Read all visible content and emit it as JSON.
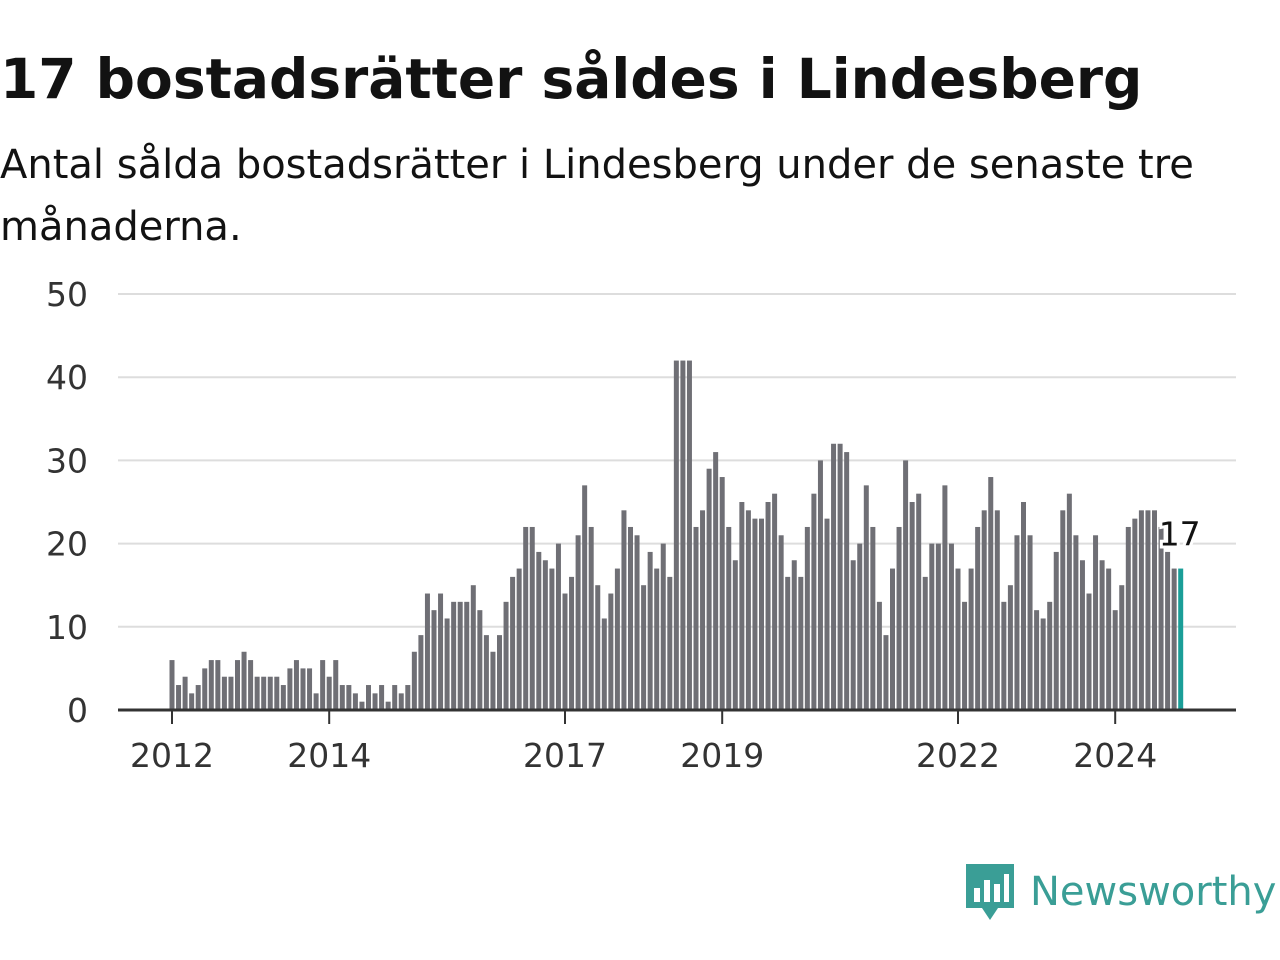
{
  "header": {
    "title": "17 bostadsrätter såldes i Lindesberg",
    "subtitle": "Antal sålda bostadsrätter i Lindesberg under de senaste tre månaderna."
  },
  "brand": {
    "name": "Newsworthy",
    "icon": "newsworthy-logo-icon",
    "color": "#3a9e96"
  },
  "colors": {
    "bar": "#6f6f75",
    "highlight": "#1a9e98",
    "grid": "#dddddd",
    "axis": "#333333"
  },
  "chart_data": {
    "type": "bar",
    "title": "17 bostadsrätter såldes i Lindesberg",
    "subtitle": "Antal sålda bostadsrätter i Lindesberg under de senaste tre månaderna.",
    "xlabel": "",
    "ylabel": "",
    "ylim": [
      0,
      50
    ],
    "yticks": [
      0,
      10,
      20,
      30,
      40,
      50
    ],
    "xticks": [
      "2012",
      "2014",
      "2017",
      "2019",
      "2022",
      "2024"
    ],
    "grid": true,
    "legend": "none",
    "start": "2012-01",
    "frequency": "monthly",
    "series": [
      {
        "values": [
          6,
          3,
          4,
          2,
          3,
          5,
          6,
          6,
          4,
          4,
          6,
          7,
          6,
          4,
          4,
          4,
          4,
          3,
          5,
          6,
          5,
          5,
          2,
          6,
          4,
          6,
          3,
          3,
          2,
          1,
          3,
          2,
          3,
          1,
          3,
          2,
          3,
          7,
          9,
          14,
          12,
          14,
          11,
          13,
          13,
          13,
          15,
          12,
          9,
          7,
          9,
          13,
          16,
          17,
          22,
          22,
          19,
          18,
          17,
          20,
          14,
          16,
          21,
          27,
          22,
          15,
          11,
          14,
          17,
          24,
          22,
          21,
          15,
          19,
          17,
          20,
          16,
          42,
          42,
          42,
          22,
          24,
          29,
          31,
          28,
          22,
          18,
          25,
          24,
          23,
          23,
          25,
          26,
          21,
          16,
          18,
          16,
          22,
          26,
          30,
          23,
          32,
          32,
          31,
          18,
          20,
          27,
          22,
          13,
          9,
          17,
          22,
          30,
          25,
          26,
          16,
          20,
          20,
          27,
          20,
          17,
          13,
          17,
          22,
          24,
          28,
          24,
          13,
          15,
          21,
          25,
          21,
          12,
          11,
          13,
          19,
          24,
          26,
          21,
          18,
          14,
          21,
          18,
          17,
          12,
          15,
          22,
          23,
          24,
          24,
          24,
          22,
          19,
          17,
          17
        ]
      }
    ],
    "highlight": {
      "index": 154,
      "label": "17"
    }
  }
}
